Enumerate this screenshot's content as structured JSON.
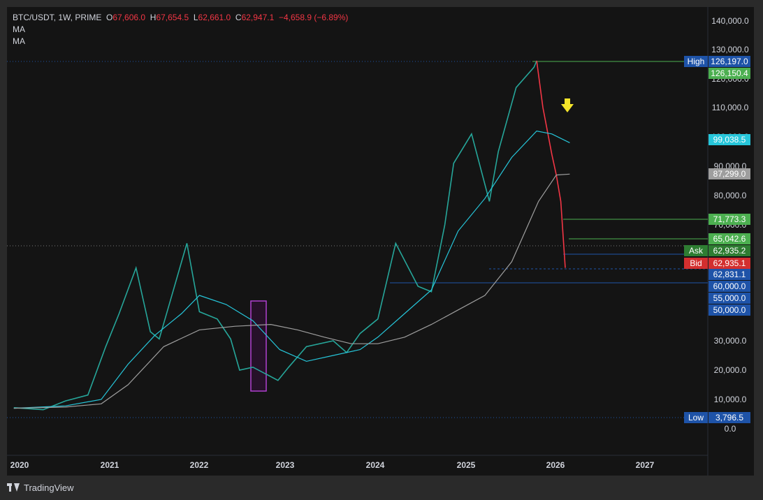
{
  "header": {
    "symbol": "BTC/USDT, 1W, PRIME",
    "o_label": "O",
    "o_value": "67,606.0",
    "h_label": "H",
    "h_value": "67,654.5",
    "l_label": "L",
    "l_value": "62,661.0",
    "c_label": "C",
    "c_value": "62,947.1",
    "change": "−4,658.9 (−6.89%)",
    "indicators": [
      "MA",
      "MA"
    ]
  },
  "brand": {
    "name": "TradingView"
  },
  "chart_data": {
    "type": "line",
    "title": "BTC/USDT, 1W, PRIME",
    "price_axis_ticks": [
      "140,000.0",
      "130,000.0",
      "120,000.0",
      "110,000.0",
      "100,000.0",
      "90,000.0",
      "80,000.0",
      "70,000.0",
      "30,000.0",
      "20,000.0",
      "10,000.0",
      "0.0"
    ],
    "time_axis_ticks": [
      "2020",
      "2021",
      "2022",
      "2023",
      "2024",
      "2025",
      "2026",
      "2027"
    ],
    "series": [
      {
        "color": "#26a69a",
        "x": [
          2019.92,
          2020.25,
          2020.5,
          2020.75,
          2020.95,
          2021.1,
          2021.29,
          2021.45,
          2021.55,
          2021.65,
          2021.86,
          2022.0,
          2022.2,
          2022.35,
          2022.45,
          2022.6,
          2022.88,
          2023.0,
          2023.2,
          2023.5,
          2023.65,
          2023.8,
          2024.0,
          2024.2,
          2024.45,
          2024.6,
          2024.75,
          2024.85,
          2024.95,
          2025.05,
          2025.25,
          2025.35,
          2025.55,
          2025.75,
          2025.78,
          2025.85,
          2025.95,
          2026.0,
          2026.05,
          2026.1
        ],
        "y": [
          7200,
          6500,
          9500,
          11500,
          28000,
          45000,
          63000,
          35000,
          31000,
          48000,
          67000,
          46000,
          42000,
          31000,
          20000,
          21000,
          16500,
          21000,
          28000,
          30000,
          26000,
          34000,
          42000,
          67000,
          60000,
          57000,
          70000,
          91000,
          96000,
          101000,
          78000,
          95000,
          117000,
          124000,
          126197,
          110000,
          94000,
          87000,
          78000,
          63000
        ]
      },
      {
        "color": "#26c6da",
        "x": [
          2019.92,
          2020.5,
          2020.9,
          2021.2,
          2021.5,
          2021.8,
          2022.0,
          2022.3,
          2022.6,
          2022.9,
          2023.2,
          2023.5,
          2023.8,
          2024.0,
          2024.3,
          2024.6,
          2024.9,
          2025.2,
          2025.5,
          2025.78,
          2025.95,
          2026.15
        ],
        "y": [
          7000,
          7800,
          10000,
          22000,
          33000,
          45000,
          55000,
          50000,
          41000,
          27000,
          23000,
          25000,
          27000,
          32000,
          45000,
          58000,
          69000,
          79000,
          93000,
          102000,
          101000,
          98000
        ]
      },
      {
        "color": "#9e9e9e",
        "x": [
          2019.92,
          2020.5,
          2020.9,
          2021.2,
          2021.6,
          2022.0,
          2022.4,
          2022.8,
          2023.1,
          2023.4,
          2023.7,
          2024.0,
          2024.3,
          2024.6,
          2024.9,
          2025.2,
          2025.5,
          2025.8,
          2026.0,
          2026.15
        ],
        "y": [
          7000,
          7400,
          8500,
          15000,
          28000,
          36000,
          38000,
          39000,
          36000,
          32000,
          29000,
          29000,
          32000,
          39000,
          47000,
          55000,
          64000,
          78000,
          87000,
          87300
        ]
      }
    ],
    "price_labels": [
      {
        "text": "High",
        "value": "126,197.0",
        "color": "#1e53a8"
      },
      {
        "text": "",
        "value": "126,150.4",
        "color": "#4caf50"
      },
      {
        "text": "",
        "value": "99,038.5",
        "color": "#26c6da"
      },
      {
        "text": "",
        "value": "87,299.0",
        "color": "#9e9e9e"
      },
      {
        "text": "",
        "value": "71,773.3",
        "color": "#4caf50"
      },
      {
        "text": "",
        "value": "65,042.6",
        "color": "#4caf50"
      },
      {
        "text": "Ask",
        "value": "62,935.2",
        "color": "#2e7d32"
      },
      {
        "text": "Bid",
        "value": "62,935.1",
        "color": "#d32f2f"
      },
      {
        "text": "",
        "value": "62,831.1",
        "color": "#1e53a8"
      },
      {
        "text": "",
        "value": "60,000.0",
        "color": "#1e53a8"
      },
      {
        "text": "",
        "value": "55,000.0",
        "color": "#1e53a8"
      },
      {
        "text": "",
        "value": "50,000.0",
        "color": "#1e53a8"
      },
      {
        "text": "Low",
        "value": "3,796.5",
        "color": "#1e53a8"
      }
    ],
    "grid": false
  }
}
